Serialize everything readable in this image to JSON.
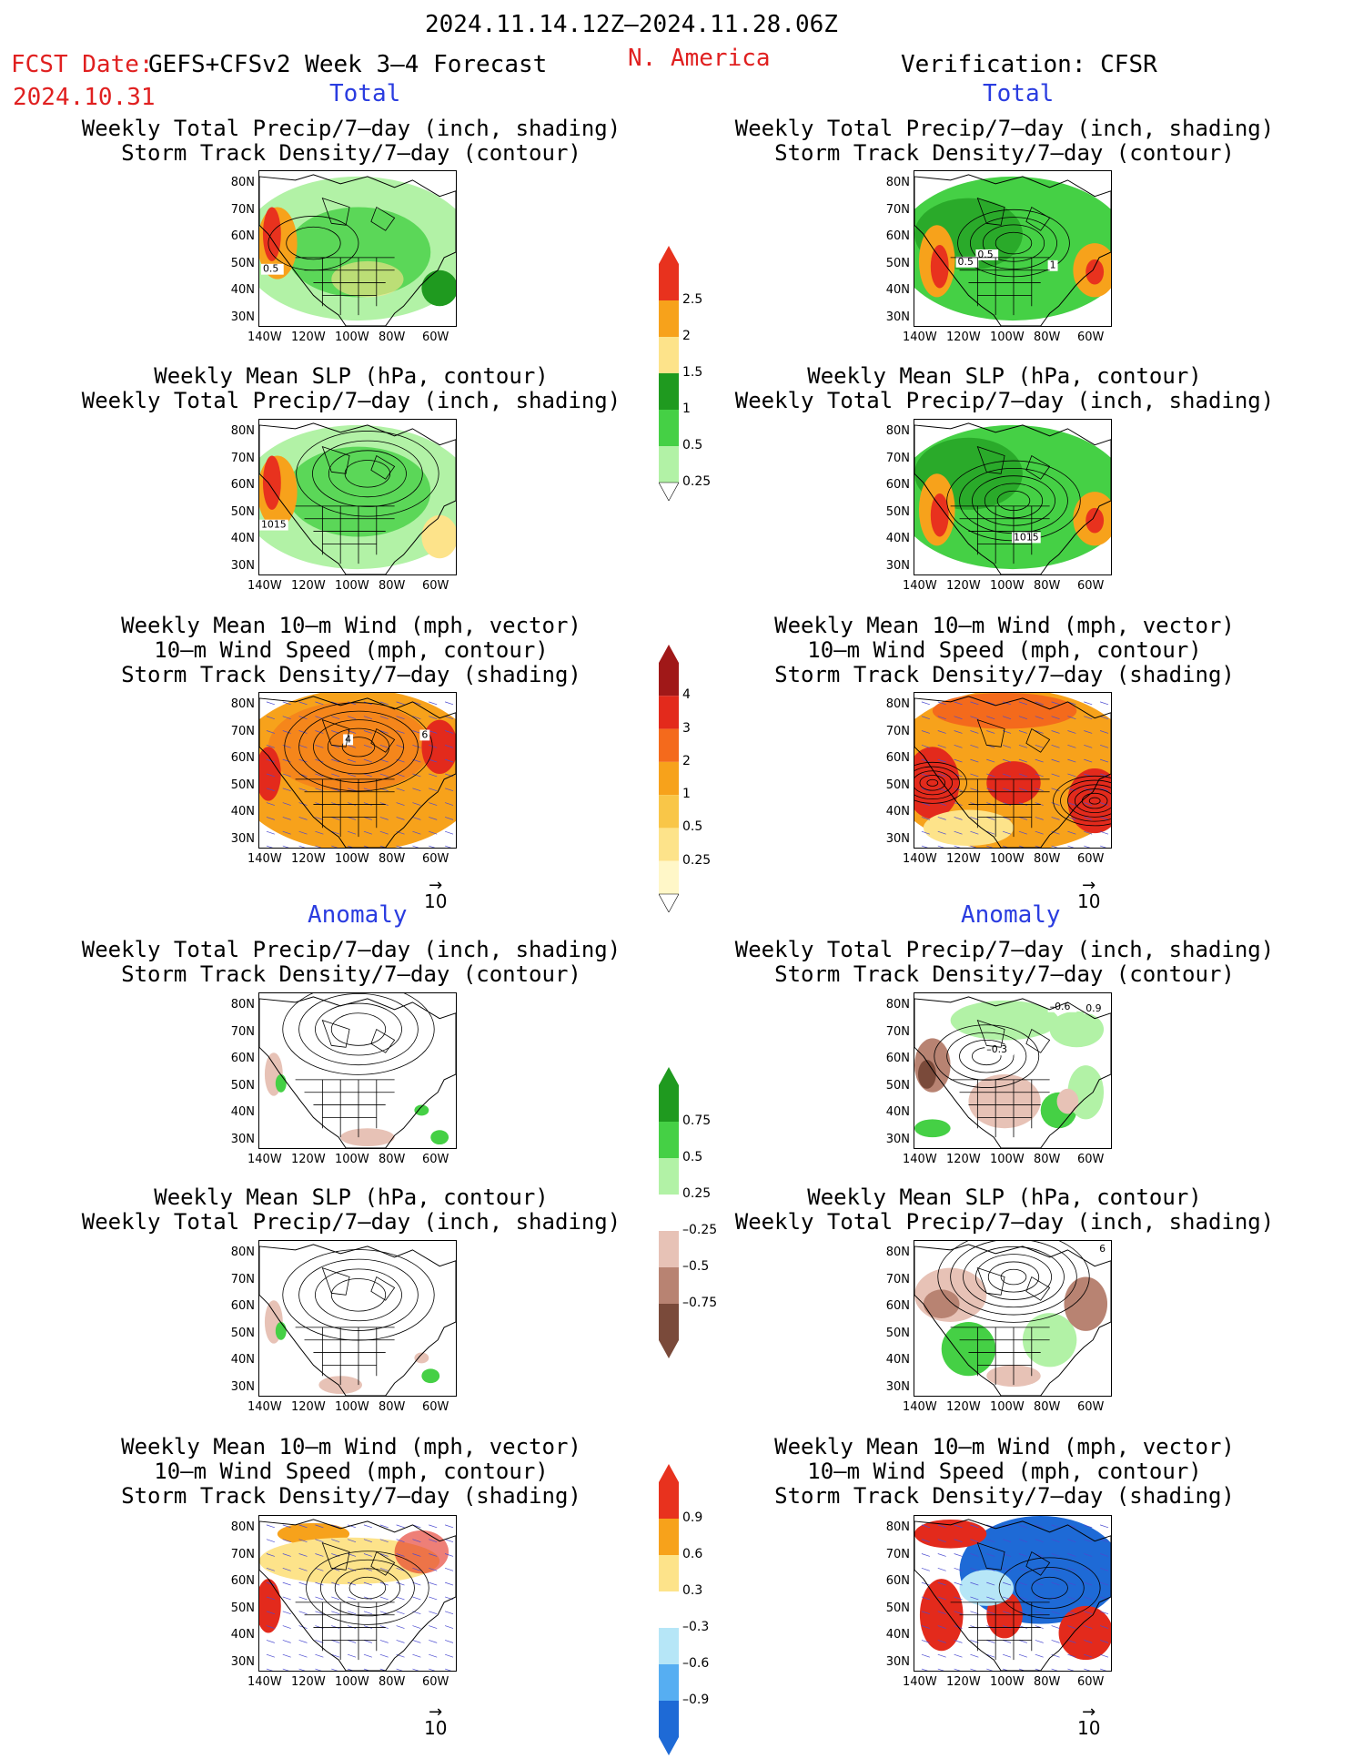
{
  "header": {
    "period": "2024.11.14.12Z–2024.11.28.06Z",
    "fcst_prefix": "FCST Date:",
    "fcst_model": "GEFS+CFSv2 Week 3–4 Forecast",
    "fcst_date": "2024.10.31",
    "region": "N. America",
    "verification": "Verification: CFSR"
  },
  "sections": {
    "total": "Total",
    "anomaly": "Anomaly"
  },
  "titles": {
    "precip_storm": [
      "Weekly Total Precip/7–day (inch, shading)",
      "Storm Track Density/7–day (contour)"
    ],
    "slp_precip": [
      "Weekly Mean SLP (hPa, contour)",
      "Weekly Total Precip/7–day (inch, shading)"
    ],
    "wind_storm": [
      "Weekly Mean 10–m Wind (mph, vector)",
      "10–m Wind Speed (mph, contour)",
      "Storm Track Density/7–day (shading)"
    ]
  },
  "axes": {
    "lat": [
      "80N",
      "70N",
      "60N",
      "50N",
      "40N",
      "30N"
    ],
    "lon": [
      "140W",
      "120W",
      "100W",
      "80W",
      "60W"
    ]
  },
  "contour_labels": {
    "fcst_precip": "0.5",
    "cfsr_precip": [
      "0.5",
      "0.5",
      "1"
    ],
    "fcst_slp": "1015",
    "cfsr_slp": "1015",
    "fcst_wind": [
      "4",
      "6"
    ],
    "cfsr_anom_precip": [
      "–0.6",
      "0.9",
      "–0.3"
    ],
    "cfsr_anom_slp": "6"
  },
  "vector_ref": "10",
  "colorbars": {
    "precip_total": {
      "labels": [
        "2.5",
        "2",
        "1.5",
        "1",
        "0.5",
        "0.25"
      ],
      "colors": [
        "#e8321e",
        "#f7a21b",
        "#fde38a",
        "#1f9a1f",
        "#45d045",
        "#b2f2a6"
      ]
    },
    "storm_total": {
      "labels": [
        "4",
        "3",
        "2",
        "1",
        "0.5",
        "0.25"
      ],
      "colors": [
        "#a01818",
        "#e32a1c",
        "#f46a1c",
        "#f7a21b",
        "#f9c648",
        "#fde38a",
        "#fff7c8"
      ]
    },
    "precip_anom": {
      "labels": [
        "0.75",
        "0.5",
        "0.25",
        "–0.25",
        "–0.5",
        "–0.75"
      ],
      "colors": [
        "#1f9a1f",
        "#45d045",
        "#b2f2a6",
        "#ffffff",
        "#e7c2b6",
        "#b88372",
        "#7a4a3a"
      ]
    },
    "storm_anom": {
      "labels": [
        "0.9",
        "0.6",
        "0.3",
        "–0.3",
        "–0.6",
        "–0.9"
      ],
      "colors": [
        "#e8321e",
        "#f7a21b",
        "#fde38a",
        "#ffffff",
        "#b6e6f7",
        "#56aef2",
        "#1e6ad6"
      ]
    }
  }
}
